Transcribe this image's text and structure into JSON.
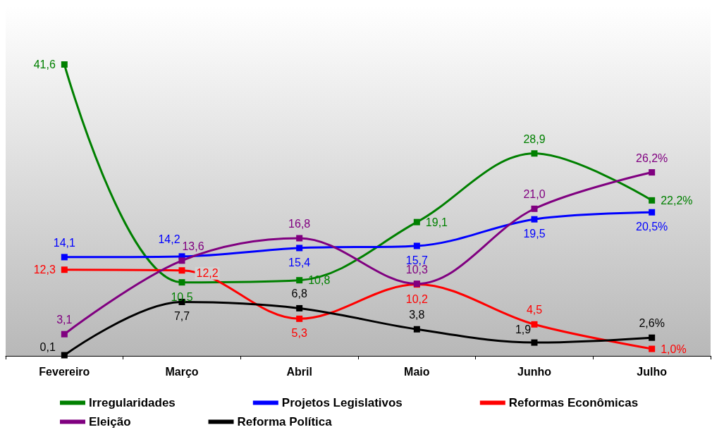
{
  "chart_data": {
    "type": "line",
    "categories": [
      "Fevereiro",
      "Março",
      "Abril",
      "Maio",
      "Junho",
      "Julho"
    ],
    "series": [
      {
        "name": "Irregularidades",
        "color": "#008000",
        "values": [
          41.6,
          10.5,
          10.8,
          19.1,
          28.9,
          22.2
        ],
        "value_labels": [
          "41,6",
          "10,5",
          "10,8",
          "19,1",
          "28,9",
          "22,2%"
        ]
      },
      {
        "name": "Projetos Legislativos",
        "color": "#0000ff",
        "values": [
          14.1,
          14.2,
          15.4,
          15.7,
          19.5,
          20.5
        ],
        "value_labels": [
          "14,1",
          "14,2",
          "15,4",
          "15,7",
          "19,5",
          "20,5%"
        ]
      },
      {
        "name": "Reformas Econômicas",
        "color": "#ff0000",
        "values": [
          12.3,
          12.2,
          5.3,
          10.2,
          4.5,
          1.0
        ],
        "value_labels": [
          "12,3",
          "12,2",
          "5,3",
          "10,2",
          "4,5",
          "1,0%"
        ]
      },
      {
        "name": "Eleição",
        "color": "#800080",
        "values": [
          3.1,
          13.6,
          16.8,
          10.3,
          21.0,
          26.2
        ],
        "value_labels": [
          "3,1",
          "13,6",
          "16,8",
          "10,3",
          "21,0",
          "26,2%"
        ]
      },
      {
        "name": "Reforma Política",
        "color": "#000000",
        "values": [
          0.1,
          7.7,
          6.8,
          3.8,
          1.9,
          2.6
        ],
        "value_labels": [
          "0,1",
          "7,7",
          "6,8",
          "3,8",
          "1,9",
          "2,6%"
        ]
      }
    ],
    "marker": "square",
    "grid": false,
    "legend": "bottom"
  }
}
